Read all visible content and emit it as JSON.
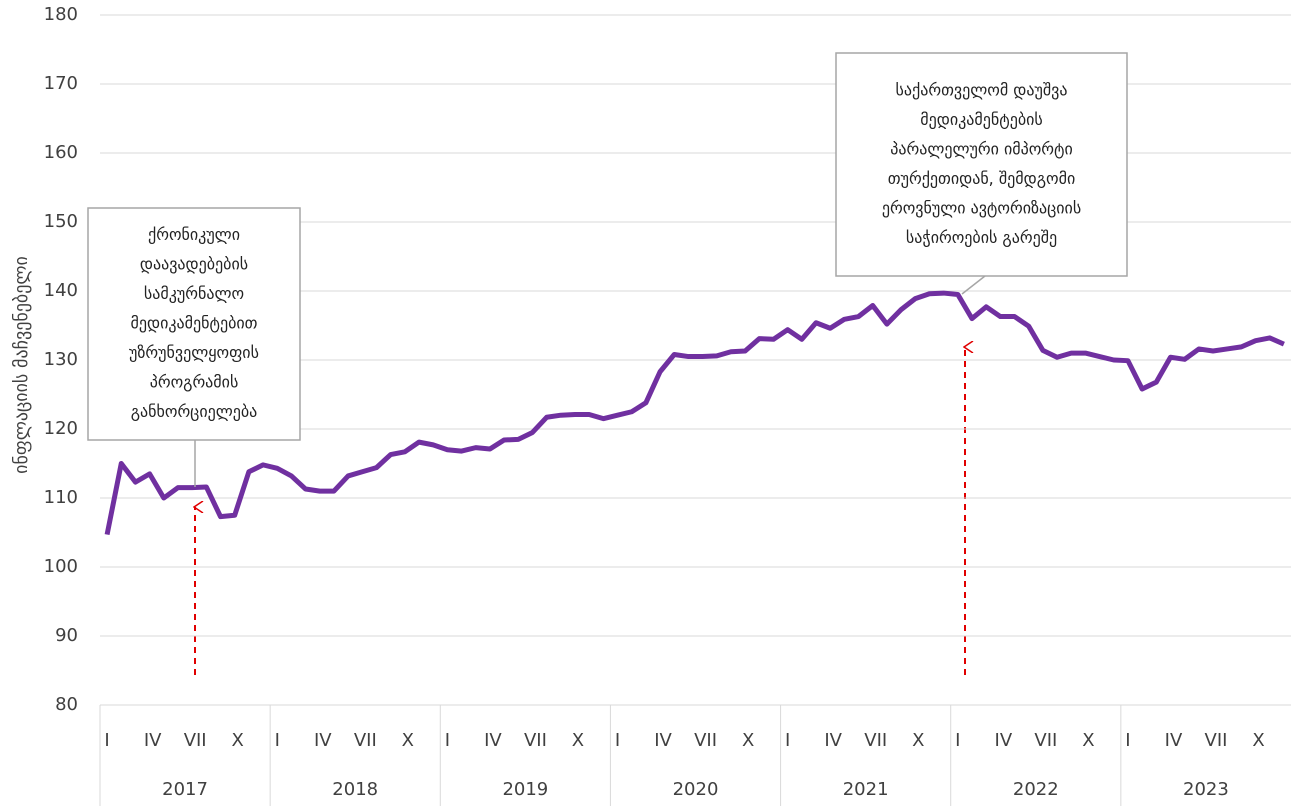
{
  "chart_data": {
    "type": "line",
    "y_label": "ინფლაციის მაჩვენებელი",
    "ylim": [
      80,
      180
    ],
    "yticks": [
      80,
      90,
      100,
      110,
      120,
      130,
      140,
      150,
      160,
      170,
      180
    ],
    "grid": true,
    "years": [
      "2017",
      "2018",
      "2019",
      "2020",
      "2021",
      "2022",
      "2023"
    ],
    "categories": [
      "I",
      null,
      null,
      "IV",
      null,
      null,
      "VII",
      null,
      null,
      "X",
      null,
      null,
      "I",
      null,
      null,
      "IV",
      null,
      null,
      "VII",
      null,
      null,
      "X",
      null,
      null,
      "I",
      null,
      null,
      "IV",
      null,
      null,
      "VII",
      null,
      null,
      "X",
      null,
      null,
      "I",
      null,
      null,
      "IV",
      null,
      null,
      "VII",
      null,
      null,
      "X",
      null,
      null,
      "I",
      null,
      null,
      "IV",
      null,
      null,
      "VII",
      null,
      null,
      "X",
      null,
      null,
      "I",
      null,
      null,
      "IV",
      null,
      null,
      "VII",
      null,
      null,
      "X",
      null,
      null,
      "I",
      null,
      null,
      "IV",
      null,
      null,
      "VII",
      null,
      null,
      "X",
      null,
      null
    ],
    "series": [
      {
        "color": "#7030a0",
        "values": [
          104.7,
          115,
          112.3,
          113.5,
          110,
          111.5,
          111.5,
          111.6,
          107.3,
          107.5,
          113.8,
          114.8,
          114.3,
          113.2,
          111.3,
          111,
          111,
          113.2,
          113.8,
          114.4,
          116.3,
          116.7,
          118.1,
          117.7,
          117,
          116.8,
          117.3,
          117.1,
          118.4,
          118.5,
          119.5,
          121.7,
          122,
          122.1,
          122.1,
          121.5,
          122,
          122.5,
          123.8,
          128.3,
          130.8,
          130.5,
          130.5,
          130.6,
          131.2,
          131.3,
          133.1,
          133,
          134.4,
          133,
          135.4,
          134.6,
          135.9,
          136.3,
          137.9,
          135.2,
          137.3,
          138.9,
          139.6,
          139.7,
          139.5,
          136,
          137.7,
          136.3,
          136.3,
          134.9,
          131.4,
          130.4,
          131,
          131,
          130.5,
          130,
          129.9,
          125.8,
          126.8,
          130.4,
          130.1,
          131.6,
          131.3,
          131.6,
          131.9,
          132.8,
          133.2,
          132.3
        ]
      }
    ],
    "annotations": [
      {
        "lines": [
          "ქრონიკული",
          "დაავადებების",
          "სამკურნალო",
          "მედიკამენტებით",
          "უზრუნველყოფის",
          "პროგრამის",
          "განხორციელება"
        ]
      },
      {
        "lines": [
          "საქართველომ დაუშვა",
          "მედიკამენტების",
          "პარალელური იმპორტი",
          "თურქეთიდან, შემდგომი",
          "ეროვნული ავტორიზაციის",
          "საჭიროების გარეშე"
        ]
      }
    ]
  }
}
